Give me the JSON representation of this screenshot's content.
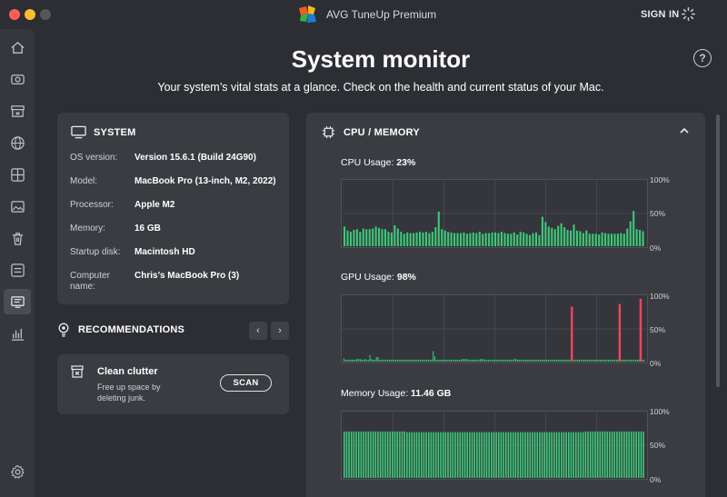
{
  "app": {
    "title": "AVG TuneUp Premium",
    "sign_in": "SIGN IN"
  },
  "sidebar": {
    "items": [
      {
        "icon": "home-icon"
      },
      {
        "icon": "eye-icon"
      },
      {
        "icon": "archive-icon"
      },
      {
        "icon": "globe-icon"
      },
      {
        "icon": "apps-icon"
      },
      {
        "icon": "photo-icon"
      },
      {
        "icon": "trash-icon"
      },
      {
        "icon": "startup-items-icon"
      },
      {
        "icon": "system-monitor-icon",
        "active": true
      },
      {
        "icon": "bar-chart-icon"
      }
    ],
    "settings_icon": "gear-icon"
  },
  "header": {
    "title": "System monitor",
    "subtitle": "Your system’s vital stats at a glance. Check on the health and current status of your Mac.",
    "help_icon": "help-icon",
    "help_glyph": "?"
  },
  "system": {
    "heading": "SYSTEM",
    "rows": [
      {
        "key": "OS version:",
        "value": "Version 15.6.1 (Build 24G90)"
      },
      {
        "key": "Model:",
        "value": "MacBook Pro (13-inch, M2, 2022)"
      },
      {
        "key": "Processor:",
        "value": "Apple M2"
      },
      {
        "key": "Memory:",
        "value": "16 GB"
      },
      {
        "key": "Startup disk:",
        "value": "Macintosh HD"
      },
      {
        "key": "Computer name:",
        "value": "Chris’s MacBook Pro (3)"
      }
    ]
  },
  "recommendations": {
    "heading": "RECOMMENDATIONS",
    "prev_glyph": "‹",
    "next_glyph": "›",
    "card": {
      "title": "Clean clutter",
      "description": "Free up space by deleting junk.",
      "button": "SCAN"
    }
  },
  "monitor": {
    "heading": "CPU / MEMORY",
    "cpu": {
      "label": "CPU Usage:",
      "value": "23%",
      "ticks": [
        "100%",
        "50%",
        "0%"
      ],
      "bar_color": "#3ec97a",
      "series": [
        30,
        24,
        22,
        25,
        26,
        22,
        27,
        26,
        26,
        27,
        30,
        28,
        26,
        26,
        22,
        21,
        32,
        27,
        22,
        19,
        21,
        20,
        20,
        21,
        22,
        21,
        22,
        20,
        22,
        29,
        53,
        26,
        24,
        22,
        21,
        20,
        20,
        20,
        21,
        19,
        20,
        21,
        20,
        22,
        19,
        20,
        20,
        21,
        21,
        20,
        22,
        20,
        19,
        19,
        21,
        18,
        22,
        21,
        19,
        17,
        20,
        21,
        17,
        45,
        37,
        30,
        28,
        26,
        31,
        35,
        29,
        25,
        24,
        33,
        24,
        23,
        20,
        24,
        19,
        19,
        19,
        18,
        21,
        20,
        19,
        19,
        19,
        19,
        20,
        19,
        27,
        38,
        54,
        26,
        25,
        23
      ]
    },
    "gpu": {
      "label": "GPU Usage:",
      "value": "98%",
      "ticks": [
        "100%",
        "50%",
        "0%"
      ],
      "bar_color": "#3ec97a",
      "alert_color": "#e8475f",
      "series": [
        5,
        3,
        3,
        3,
        3,
        3,
        3,
        3,
        4,
        4,
        4,
        3,
        3,
        4,
        3,
        3,
        10,
        4,
        3,
        3,
        7,
        7,
        3,
        3,
        3,
        3,
        3,
        3,
        3,
        3,
        3,
        3,
        3,
        3,
        3,
        3,
        3,
        3,
        3,
        3,
        3,
        3,
        3,
        3,
        3,
        3,
        3,
        3,
        3,
        3,
        3,
        3,
        3,
        3,
        3,
        16,
        8,
        3,
        3,
        3,
        3,
        3,
        3,
        3,
        3,
        3,
        3,
        3,
        3,
        3,
        3,
        3,
        3,
        4,
        4,
        4,
        4,
        3,
        3,
        3,
        3,
        3,
        3,
        3,
        4,
        4,
        4,
        3,
        3,
        3,
        3,
        3,
        3,
        3,
        3,
        3,
        3,
        3,
        3,
        3,
        3,
        3,
        3,
        3,
        3,
        4,
        4,
        3,
        3,
        3,
        3,
        3,
        3,
        3,
        3,
        3,
        3,
        3,
        3,
        3,
        3,
        3,
        3,
        3,
        3,
        3,
        3,
        3,
        3,
        3,
        3,
        3,
        3,
        3,
        3,
        3,
        3,
        3,
        3,
        3,
        3,
        3,
        3,
        3,
        3,
        3,
        3,
        3,
        3,
        3,
        3,
        3,
        3,
        3,
        3,
        3,
        3,
        3,
        3,
        3,
        3,
        3,
        3,
        3,
        3,
        3,
        3,
        3,
        3,
        3,
        3,
        3,
        3,
        3,
        3,
        3,
        3,
        3,
        3,
        3,
        3,
        3,
        3,
        3,
        3,
        3
      ],
      "spikes": [
        {
          "index": 0.76,
          "value": 84
        },
        {
          "index": 0.92,
          "value": 88
        },
        {
          "index": 0.99,
          "value": 96
        }
      ]
    },
    "memory": {
      "label": "Memory Usage:",
      "value": "11.46 GB",
      "ticks": [
        "100%",
        "50%",
        "0%"
      ],
      "bar_color": "#3ec97a",
      "series": [
        71,
        71,
        71,
        71,
        71,
        71,
        71,
        71,
        71,
        71,
        71,
        71,
        71,
        71,
        71,
        71,
        71,
        71,
        71,
        71,
        71,
        71,
        71,
        71,
        71,
        71,
        70,
        70,
        70,
        70,
        70,
        70,
        70,
        70,
        70,
        70,
        70,
        70,
        70,
        70,
        70,
        70,
        70,
        70,
        70,
        70,
        70,
        70,
        70,
        70,
        70,
        70,
        70,
        70,
        70,
        70,
        70,
        70,
        70,
        70,
        70,
        70,
        70,
        70,
        70,
        70,
        70,
        70,
        70,
        70,
        70,
        70,
        70,
        70,
        70,
        70,
        70,
        70,
        70,
        70,
        70,
        70,
        70,
        70,
        70,
        70,
        70,
        70,
        70,
        70,
        70,
        70,
        70,
        70,
        70,
        70,
        70,
        70,
        70,
        70,
        71,
        71,
        71,
        71,
        71,
        71,
        71,
        71,
        71,
        71,
        71,
        71,
        71,
        71,
        71,
        71,
        71,
        71,
        71,
        71,
        71,
        71,
        71,
        71,
        71
      ]
    }
  },
  "colors": {
    "background": "#2c2e33",
    "panel": "#3a3c42",
    "accent_green": "#3ec97a",
    "alert_red": "#e8475f"
  }
}
